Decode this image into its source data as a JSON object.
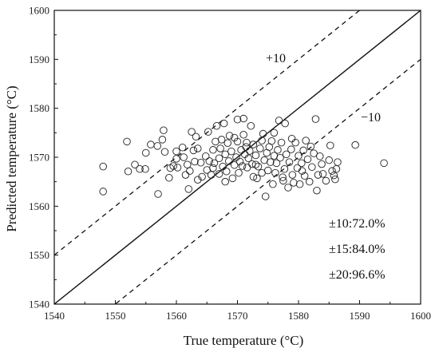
{
  "chart_data": {
    "type": "scatter",
    "title": "",
    "xlabel": "True temperature (°C)",
    "ylabel": "Predicted temperature (°C)",
    "xlim": [
      1540,
      1600
    ],
    "ylim": [
      1540,
      1600
    ],
    "xticks": [
      1540,
      1550,
      1560,
      1570,
      1580,
      1590,
      1600
    ],
    "yticks": [
      1540,
      1550,
      1560,
      1570,
      1580,
      1590,
      1600
    ],
    "grid": false,
    "reference_lines": [
      {
        "style": "solid",
        "offset": 0
      },
      {
        "style": "dashed",
        "offset": 10,
        "label": "+10"
      },
      {
        "style": "dashed",
        "offset": -10,
        "label": "−10"
      }
    ],
    "stats": [
      "±10:72.0%",
      "±15:84.0%",
      "±20:96.6%"
    ],
    "points": [
      [
        1548,
        1568.1
      ],
      [
        1548,
        1563.0
      ],
      [
        1551.9,
        1573.2
      ],
      [
        1552.1,
        1567.1
      ],
      [
        1553.2,
        1568.5
      ],
      [
        1554.0,
        1567.6
      ],
      [
        1554.9,
        1567.6
      ],
      [
        1555.0,
        1570.9
      ],
      [
        1555.8,
        1572.6
      ],
      [
        1556.9,
        1572.3
      ],
      [
        1557.0,
        1562.5
      ],
      [
        1557.7,
        1573.6
      ],
      [
        1557.9,
        1575.5
      ],
      [
        1558.1,
        1571.1
      ],
      [
        1558.8,
        1565.8
      ],
      [
        1559.0,
        1567.8
      ],
      [
        1559.5,
        1568.2
      ],
      [
        1560.0,
        1571.2
      ],
      [
        1560.0,
        1569.7
      ],
      [
        1560.2,
        1567.9
      ],
      [
        1561.0,
        1572.0
      ],
      [
        1561.2,
        1570.0
      ],
      [
        1561.5,
        1566.4
      ],
      [
        1561.8,
        1568.5
      ],
      [
        1562.0,
        1563.5
      ],
      [
        1562.2,
        1567.2
      ],
      [
        1562.8,
        1571.4
      ],
      [
        1563.0,
        1569.1
      ],
      [
        1563.2,
        1574.2
      ],
      [
        1563.5,
        1565.4
      ],
      [
        1564.0,
        1568.9
      ],
      [
        1564.2,
        1566.0
      ],
      [
        1564.8,
        1570.2
      ],
      [
        1565.0,
        1567.4
      ],
      [
        1565.2,
        1575.2
      ],
      [
        1565.4,
        1569.2
      ],
      [
        1565.7,
        1566.4
      ],
      [
        1566.0,
        1571.5
      ],
      [
        1566.2,
        1568.8
      ],
      [
        1566.4,
        1573.2
      ],
      [
        1566.6,
        1576.4
      ],
      [
        1567.0,
        1566.6
      ],
      [
        1567.0,
        1569.8
      ],
      [
        1567.2,
        1571.8
      ],
      [
        1567.4,
        1573.6
      ],
      [
        1567.6,
        1568.1
      ],
      [
        1567.8,
        1576.9
      ],
      [
        1568.0,
        1570.6
      ],
      [
        1568.2,
        1567.1
      ],
      [
        1568.4,
        1572.9
      ],
      [
        1568.6,
        1569.2
      ],
      [
        1568.7,
        1574.4
      ],
      [
        1569.0,
        1571.2
      ],
      [
        1569.2,
        1565.7
      ],
      [
        1569.5,
        1568.4
      ],
      [
        1569.8,
        1570.0
      ],
      [
        1570.0,
        1577.7
      ],
      [
        1570.0,
        1573.2
      ],
      [
        1570.2,
        1566.8
      ],
      [
        1570.4,
        1569.1
      ],
      [
        1570.6,
        1571.5
      ],
      [
        1570.8,
        1568.2
      ],
      [
        1571.0,
        1577.9
      ],
      [
        1571.0,
        1574.6
      ],
      [
        1571.2,
        1570.6
      ],
      [
        1571.4,
        1572.1
      ],
      [
        1571.6,
        1567.9
      ],
      [
        1571.8,
        1569.8
      ],
      [
        1572.0,
        1571.3
      ],
      [
        1572.2,
        1576.4
      ],
      [
        1572.4,
        1568.6
      ],
      [
        1572.6,
        1572.6
      ],
      [
        1573.0,
        1570.4
      ],
      [
        1573.2,
        1565.7
      ],
      [
        1573.4,
        1568.1
      ],
      [
        1573.7,
        1571.8
      ],
      [
        1574.0,
        1566.8
      ],
      [
        1574.2,
        1574.8
      ],
      [
        1574.4,
        1569.4
      ],
      [
        1574.6,
        1562.0
      ],
      [
        1574.8,
        1570.9
      ],
      [
        1575.0,
        1567.3
      ],
      [
        1575.2,
        1572.1
      ],
      [
        1575.4,
        1569.0
      ],
      [
        1575.6,
        1573.3
      ],
      [
        1575.8,
        1564.5
      ],
      [
        1576.0,
        1570.3
      ],
      [
        1576.2,
        1566.8
      ],
      [
        1576.4,
        1568.8
      ],
      [
        1576.6,
        1571.5
      ],
      [
        1576.8,
        1577.5
      ],
      [
        1577.0,
        1569.9
      ],
      [
        1577.2,
        1573.0
      ],
      [
        1577.5,
        1565.2
      ],
      [
        1577.7,
        1567.6
      ],
      [
        1577.8,
        1576.9
      ],
      [
        1578.0,
        1570.6
      ],
      [
        1578.3,
        1563.8
      ],
      [
        1578.5,
        1569.0
      ],
      [
        1578.8,
        1571.6
      ],
      [
        1579.0,
        1566.4
      ],
      [
        1579.2,
        1564.8
      ],
      [
        1579.5,
        1573.0
      ],
      [
        1579.8,
        1567.8
      ],
      [
        1580.0,
        1570.3
      ],
      [
        1580.2,
        1564.5
      ],
      [
        1580.5,
        1568.8
      ],
      [
        1580.8,
        1571.4
      ],
      [
        1581.0,
        1566.2
      ],
      [
        1581.2,
        1573.4
      ],
      [
        1581.5,
        1569.6
      ],
      [
        1581.8,
        1565.0
      ],
      [
        1582.0,
        1572.2
      ],
      [
        1582.2,
        1568.0
      ],
      [
        1582.5,
        1570.8
      ],
      [
        1582.8,
        1577.8
      ],
      [
        1583.0,
        1563.2
      ],
      [
        1583.2,
        1566.4
      ],
      [
        1583.5,
        1570.2
      ],
      [
        1583.8,
        1568.6
      ],
      [
        1584.0,
        1566.6
      ],
      [
        1584.5,
        1565.2
      ],
      [
        1585.0,
        1569.4
      ],
      [
        1585.2,
        1572.4
      ],
      [
        1585.5,
        1567.2
      ],
      [
        1585.8,
        1566.3
      ],
      [
        1586.0,
        1565.5
      ],
      [
        1586.2,
        1567.6
      ],
      [
        1586.4,
        1569.0
      ],
      [
        1589.3,
        1572.5
      ],
      [
        1594.0,
        1568.8
      ],
      [
        1569.5,
        1574.0
      ],
      [
        1568.0,
        1565.0
      ],
      [
        1571.5,
        1573.0
      ],
      [
        1576.0,
        1575.0
      ],
      [
        1574.0,
        1573.4
      ],
      [
        1573.0,
        1568.5
      ],
      [
        1566.0,
        1567.8
      ],
      [
        1563.5,
        1571.8
      ],
      [
        1562.5,
        1575.2
      ],
      [
        1572.6,
        1566.0
      ],
      [
        1577.4,
        1565.9
      ],
      [
        1580.6,
        1567.2
      ],
      [
        1578.9,
        1573.8
      ]
    ]
  }
}
